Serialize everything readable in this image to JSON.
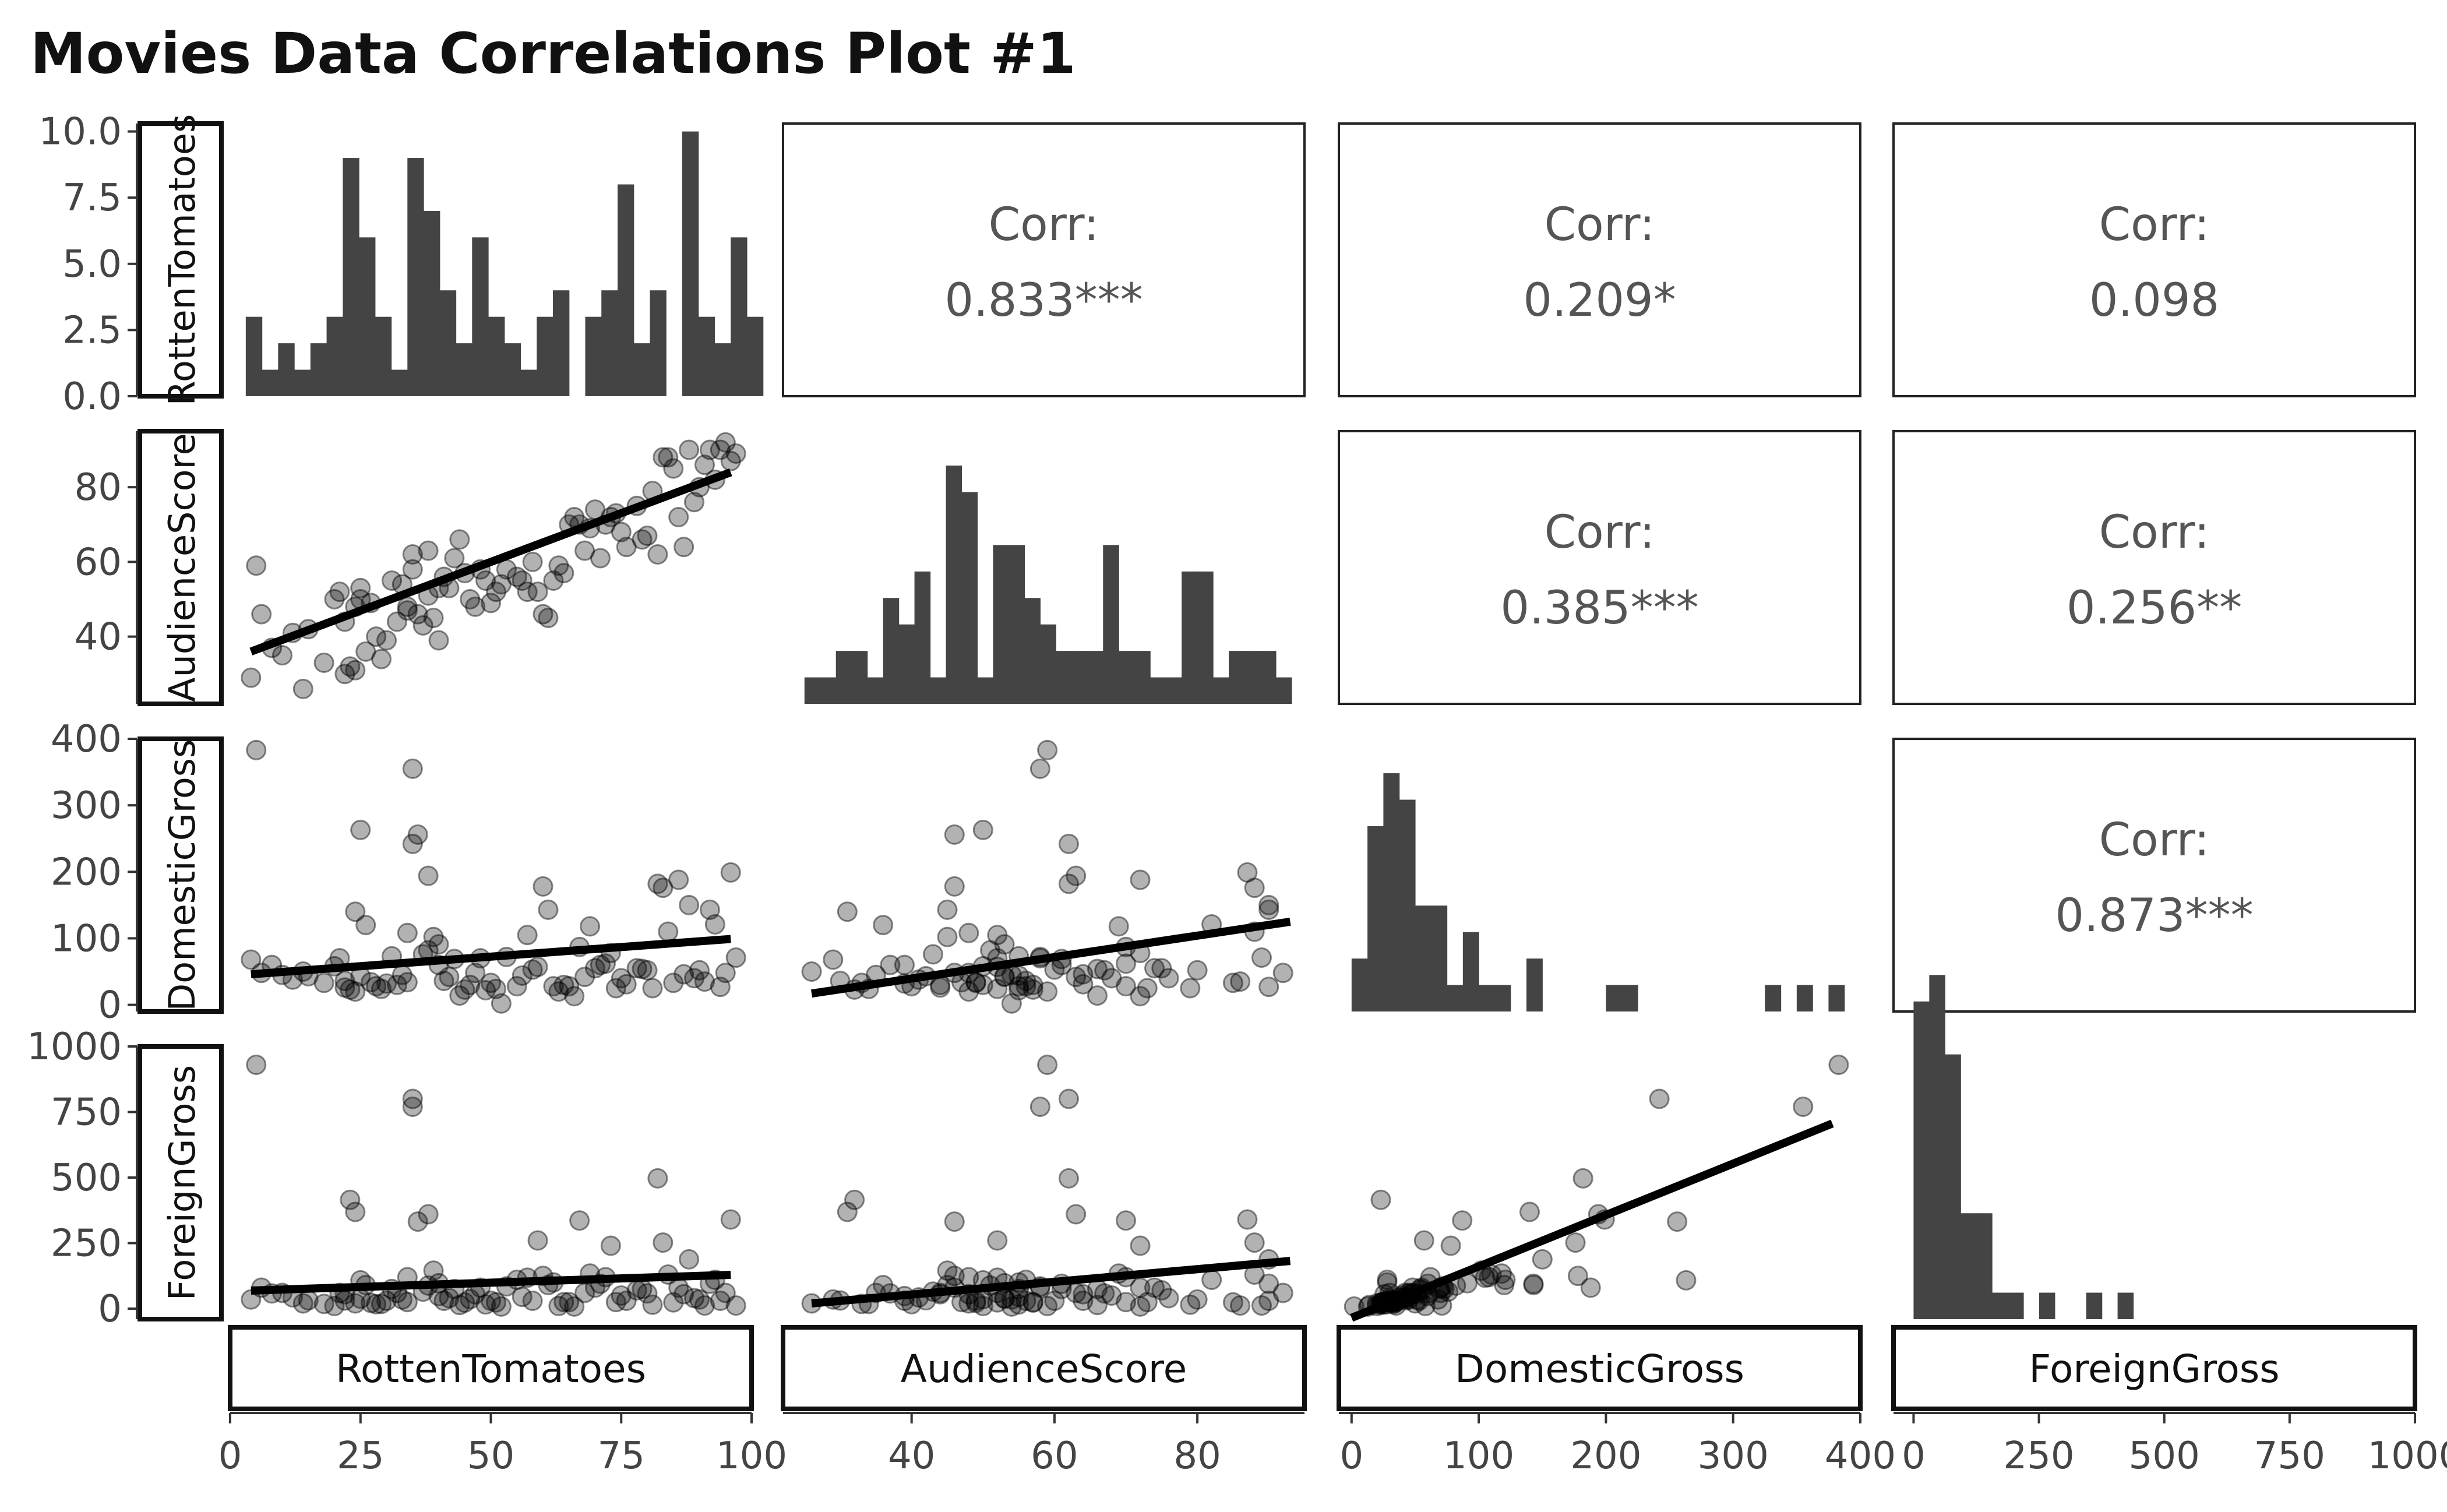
{
  "title": "Movies Data Correlations Plot #1",
  "chart_data": {
    "type": "scatter",
    "title": "Movies Data Correlations Plot #1",
    "variables": [
      "RottenTomatoes",
      "AudienceScore",
      "DomesticGross",
      "ForeignGross"
    ],
    "axes": {
      "RottenTomatoes": {
        "range": [
          0,
          100
        ],
        "ticks": [
          0,
          25,
          50,
          75,
          100
        ],
        "tick_labels": [
          "0",
          "25",
          "50",
          "75",
          "100"
        ]
      },
      "AudienceScore": {
        "range": [
          22,
          95
        ],
        "ticks": [
          40,
          60,
          80
        ],
        "tick_labels": [
          "40",
          "60",
          "80"
        ]
      },
      "DomesticGross": {
        "range": [
          -10,
          400
        ],
        "ticks": [
          0,
          100,
          200,
          300,
          400
        ],
        "tick_labels": [
          "0",
          "100",
          "200",
          "300",
          "400"
        ]
      },
      "ForeignGross": {
        "range": [
          -40,
          1000
        ],
        "ticks": [
          0,
          250,
          500,
          750,
          1000
        ],
        "tick_labels": [
          "0",
          "250",
          "500",
          "750",
          "1000"
        ]
      }
    },
    "diag_count_axis": {
      "range": [
        0,
        10.3
      ],
      "ticks": [
        0,
        2.5,
        5,
        7.5,
        10
      ],
      "tick_labels": [
        "0.0",
        "2.5",
        "5.0",
        "7.5",
        "10.0"
      ]
    },
    "correlations": [
      {
        "row": "RottenTomatoes",
        "col": "AudienceScore",
        "label": "Corr:",
        "value": "0.833***"
      },
      {
        "row": "RottenTomatoes",
        "col": "DomesticGross",
        "label": "Corr:",
        "value": "0.209*"
      },
      {
        "row": "RottenTomatoes",
        "col": "ForeignGross",
        "label": "Corr:",
        "value": "0.098"
      },
      {
        "row": "AudienceScore",
        "col": "DomesticGross",
        "label": "Corr:",
        "value": "0.385***"
      },
      {
        "row": "AudienceScore",
        "col": "ForeignGross",
        "label": "Corr:",
        "value": "0.256**"
      },
      {
        "row": "DomesticGross",
        "col": "ForeignGross",
        "label": "Corr:",
        "value": "0.873***"
      }
    ],
    "histograms": {
      "RottenTomatoes": {
        "start": 3,
        "width": 3.1,
        "counts": [
          3,
          1,
          2,
          1,
          2,
          3,
          9,
          6,
          3,
          1,
          9,
          7,
          4,
          2,
          6,
          3,
          2,
          1,
          3,
          4,
          0,
          3,
          4,
          8,
          2,
          4,
          0,
          10,
          3,
          2,
          6,
          3
        ]
      },
      "AudienceScore": {
        "start": 25,
        "width": 2.2,
        "counts": [
          1,
          1,
          2,
          2,
          1,
          4,
          3,
          5,
          1,
          9,
          8,
          1,
          6,
          6,
          4,
          3,
          2,
          2,
          2,
          6,
          2,
          2,
          1,
          1,
          5,
          5,
          1,
          2,
          2,
          2,
          1
        ]
      },
      "DomesticGross": {
        "start": 0,
        "width": 12.5,
        "counts": [
          2,
          7,
          9,
          8,
          4,
          4,
          1,
          3,
          1,
          1,
          0,
          2,
          0,
          0,
          0,
          0,
          1,
          1,
          0,
          0,
          0,
          0,
          0,
          0,
          0,
          0,
          1,
          0,
          1,
          0,
          1,
          0
        ]
      },
      "ForeignGross": {
        "start": 0,
        "width": 31.3,
        "counts": [
          12,
          13,
          10,
          4,
          4,
          1,
          1,
          0,
          1,
          0,
          0,
          1,
          0,
          1,
          0,
          0,
          0,
          0,
          0,
          0,
          0,
          0,
          0,
          0,
          0,
          0,
          0,
          0,
          0,
          0,
          0,
          0
        ]
      }
    },
    "points": {
      "RottenTomatoes": [
        4,
        6,
        8,
        12,
        15,
        18,
        20,
        21,
        22,
        23,
        24,
        24,
        25,
        25,
        26,
        27,
        28,
        30,
        31,
        32,
        33,
        34,
        35,
        35,
        36,
        37,
        38,
        38,
        39,
        40,
        41,
        42,
        43,
        44,
        45,
        46,
        47,
        48,
        49,
        50,
        51,
        52,
        55,
        56,
        58,
        59,
        60,
        61,
        62,
        63,
        65,
        66,
        67,
        68,
        70,
        71,
        72,
        73,
        75,
        76,
        78,
        80,
        81,
        82,
        83,
        84,
        85,
        86,
        88,
        89,
        90,
        91,
        92,
        93,
        94,
        95,
        96,
        97,
        5,
        10,
        14,
        22,
        29,
        34,
        40,
        53,
        57,
        64,
        69,
        74,
        79,
        87
      ],
      "AudienceScore": [
        29,
        46,
        37,
        41,
        42,
        33,
        50,
        52,
        44,
        32,
        31,
        48,
        53,
        50,
        36,
        49,
        40,
        39,
        55,
        44,
        54,
        47,
        62,
        58,
        46,
        43,
        63,
        51,
        45,
        39,
        56,
        53,
        61,
        66,
        57,
        50,
        48,
        58,
        55,
        49,
        52,
        54,
        56,
        55,
        60,
        52,
        46,
        45,
        55,
        59,
        70,
        72,
        70,
        63,
        74,
        61,
        70,
        72,
        68,
        64,
        75,
        67,
        79,
        62,
        88,
        88,
        85,
        72,
        90,
        76,
        80,
        86,
        90,
        82,
        90,
        92,
        87,
        89,
        59,
        35,
        26,
        30,
        34,
        48,
        53,
        58,
        52,
        57,
        69,
        73,
        66,
        64
      ],
      "DomesticGross": [
        68,
        48,
        60,
        38,
        43,
        33,
        58,
        70,
        26,
        23,
        140,
        20,
        43,
        263,
        120,
        34,
        28,
        32,
        73,
        30,
        45,
        34,
        242,
        355,
        256,
        76,
        194,
        82,
        102,
        60,
        36,
        42,
        69,
        14,
        23,
        30,
        48,
        70,
        22,
        33,
        24,
        2,
        28,
        44,
        53,
        57,
        178,
        143,
        28,
        20,
        28,
        13,
        87,
        42,
        55,
        60,
        62,
        78,
        40,
        31,
        55,
        52,
        25,
        182,
        176,
        110,
        33,
        188,
        150,
        40,
        52,
        35,
        143,
        121,
        27,
        48,
        199,
        71,
        383,
        45,
        50,
        36,
        24,
        108,
        91,
        72,
        105,
        30,
        118,
        25,
        54,
        46
      ],
      "ForeignGross": [
        35,
        80,
        58,
        43,
        32,
        18,
        10,
        60,
        55,
        415,
        369,
        20,
        38,
        108,
        90,
        22,
        17,
        30,
        75,
        60,
        35,
        25,
        800,
        770,
        332,
        65,
        360,
        88,
        145,
        48,
        30,
        40,
        75,
        14,
        23,
        36,
        55,
        80,
        16,
        30,
        24,
        8,
        110,
        45,
        30,
        260,
        125,
        90,
        100,
        10,
        25,
        8,
        336,
        60,
        80,
        95,
        120,
        240,
        50,
        30,
        70,
        58,
        15,
        497,
        252,
        130,
        24,
        80,
        188,
        40,
        35,
        12,
        95,
        110,
        30,
        60,
        340,
        12,
        930,
        60,
        20,
        31,
        18,
        120,
        97,
        85,
        118,
        25,
        134,
        25,
        75,
        55
      ]
    },
    "fits": {
      "AudienceScore|RottenTomatoes": [
        [
          4,
          36
        ],
        [
          96,
          84
        ]
      ],
      "DomesticGross|RottenTomatoes": [
        [
          4,
          46
        ],
        [
          96,
          99
        ]
      ],
      "DomesticGross|AudienceScore": [
        [
          26,
          17
        ],
        [
          93,
          125
        ]
      ],
      "ForeignGross|RottenTomatoes": [
        [
          4,
          69
        ],
        [
          96,
          129
        ]
      ],
      "ForeignGross|AudienceScore": [
        [
          26,
          20
        ],
        [
          93,
          182
        ]
      ],
      "ForeignGross|DomesticGross": [
        [
          0,
          -35
        ],
        [
          378,
          706
        ]
      ]
    }
  }
}
